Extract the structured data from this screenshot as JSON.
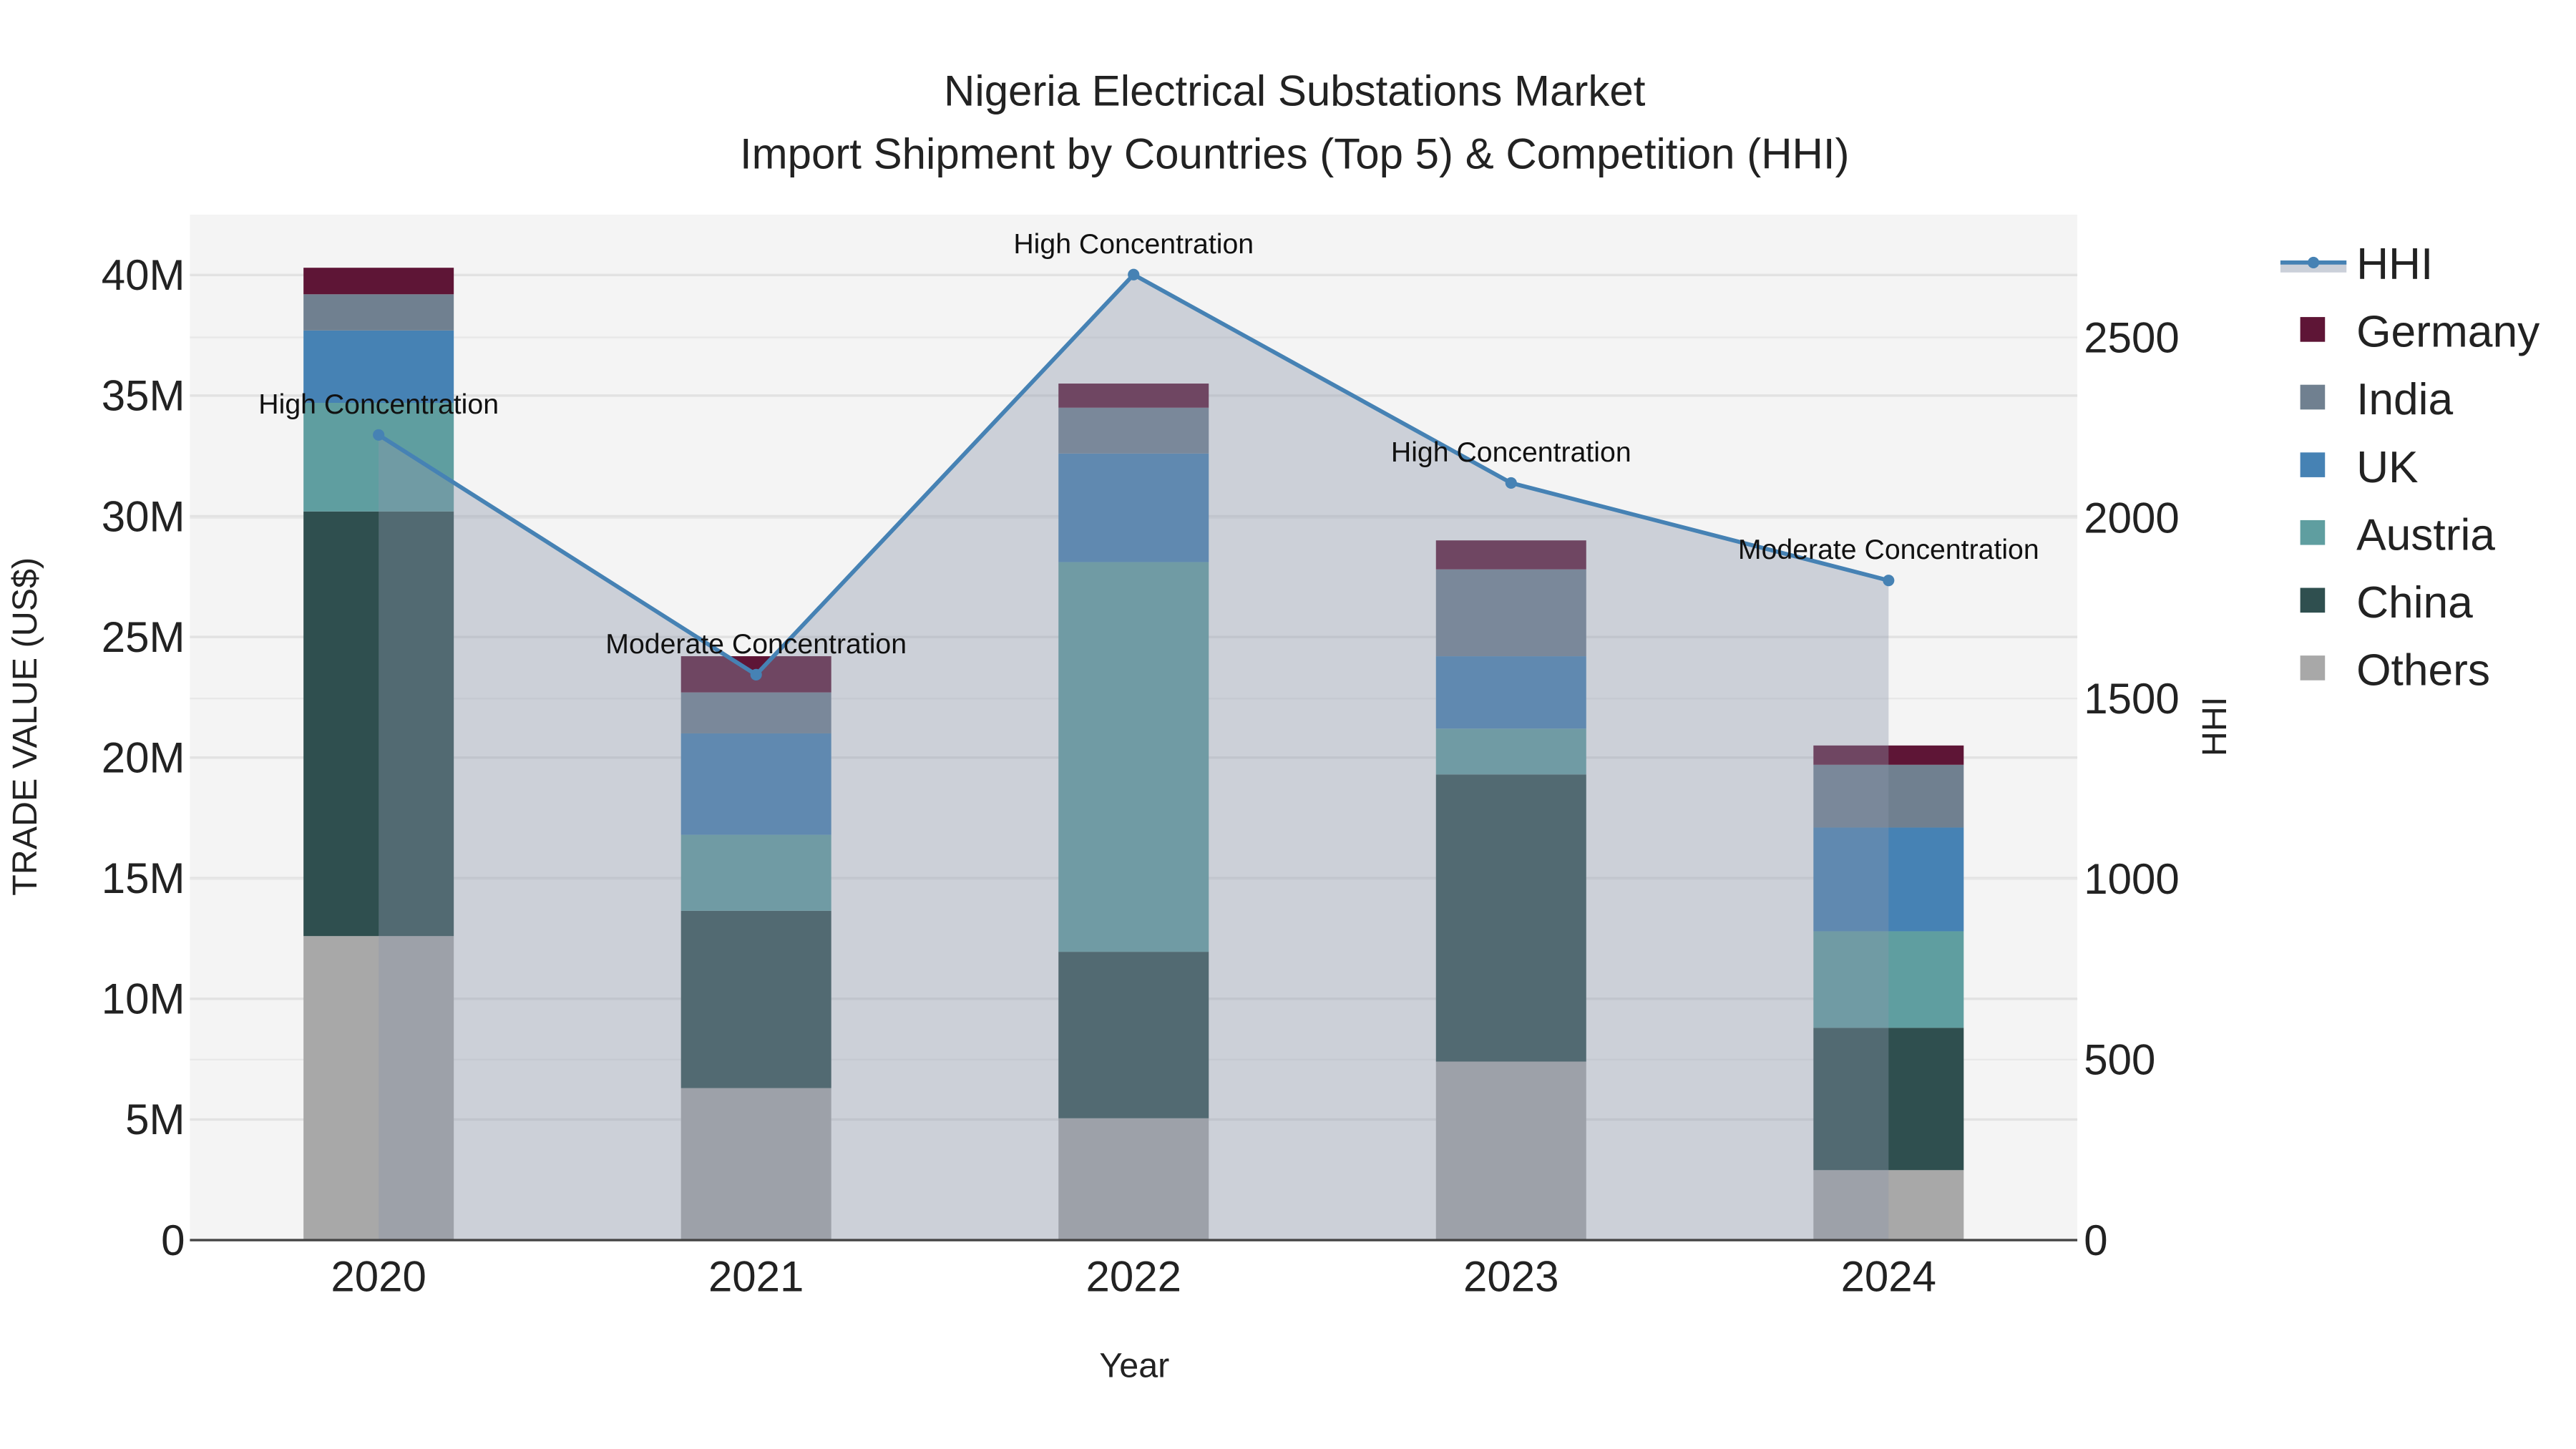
{
  "chart_data": {
    "type": "bar",
    "title_line1": "Nigeria Electrical Substations Market",
    "title_line2": "Import Shipment by Countries (Top 5) & Competition (HHI)",
    "xlabel": "Year",
    "ylabel": "TRADE VALUE (US$)",
    "y2label": "HHI",
    "categories": [
      "2020",
      "2021",
      "2022",
      "2023",
      "2024"
    ],
    "ylim": [
      0,
      42500000
    ],
    "y_ticks": [
      0,
      5000000,
      10000000,
      15000000,
      20000000,
      25000000,
      30000000,
      35000000,
      40000000
    ],
    "y_tick_labels": [
      "0",
      "5M",
      "10M",
      "15M",
      "20M",
      "25M",
      "30M",
      "35M",
      "40M"
    ],
    "y2lim": [
      0,
      2840
    ],
    "y2_ticks": [
      0,
      500,
      1000,
      1500,
      2000,
      2500
    ],
    "y2_tick_labels": [
      "0",
      "500",
      "1000",
      "1500",
      "2000",
      "2500"
    ],
    "stacked": true,
    "series": [
      {
        "name": "Others",
        "color": "#a8a8a8",
        "values": [
          12600000,
          6300000,
          5050000,
          7400000,
          2900000
        ]
      },
      {
        "name": "China",
        "color": "#2f4f4f",
        "values": [
          17600000,
          7350000,
          6900000,
          11900000,
          5900000
        ]
      },
      {
        "name": "Austria",
        "color": "#5f9ea0",
        "values": [
          4500000,
          3150000,
          16150000,
          1900000,
          4000000
        ]
      },
      {
        "name": "UK",
        "color": "#4682b4",
        "values": [
          3000000,
          4200000,
          4500000,
          3000000,
          4300000
        ]
      },
      {
        "name": "India",
        "color": "#708090",
        "values": [
          1500000,
          1700000,
          1900000,
          3600000,
          2600000
        ]
      },
      {
        "name": "Germany",
        "color": "#5e1536",
        "values": [
          1100000,
          1500000,
          1000000,
          1200000,
          800000
        ]
      }
    ],
    "hhi": {
      "name": "HHI",
      "color": "#4682b4",
      "values": [
        2230,
        1566,
        2674,
        2097,
        1827
      ]
    },
    "annotations": [
      "High Concentration",
      "Moderate Concentration",
      "High Concentration",
      "High Concentration",
      "Moderate Concentration"
    ],
    "legend_order": [
      "HHI",
      "Germany",
      "India",
      "UK",
      "Austria",
      "China",
      "Others"
    ],
    "legend_placement": "right"
  }
}
